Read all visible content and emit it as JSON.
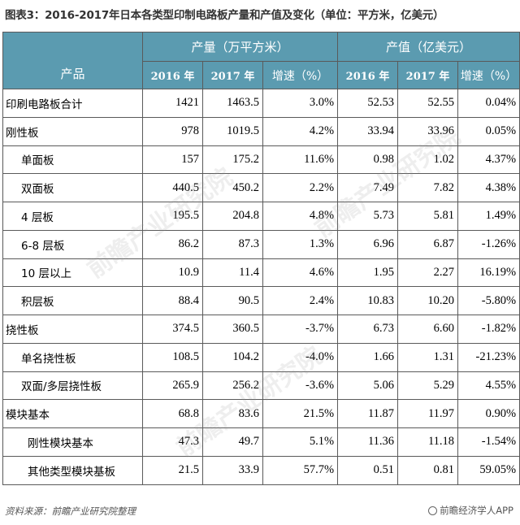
{
  "title": "图表3：2016-2017年日本各类型印制电路板产量和产值及变化（单位：平方米，亿美元）",
  "table": {
    "product_header": "产品",
    "group_headers": [
      "产量（万平方米）",
      "产值（亿美元）"
    ],
    "sub_headers": [
      "2016 年",
      "2017 年",
      "增速（%）",
      "2016 年",
      "2017 年",
      "增速（%）"
    ],
    "rows": [
      {
        "name": "印刷电路板合计",
        "level": 0,
        "values": [
          "1421",
          "1463.5",
          "3.0%",
          "52.53",
          "52.55",
          "0.04%"
        ]
      },
      {
        "name": "刚性板",
        "level": 0,
        "values": [
          "978",
          "1019.5",
          "4.2%",
          "33.94",
          "33.96",
          "0.05%"
        ]
      },
      {
        "name": "单面板",
        "level": 1,
        "values": [
          "157",
          "175.2",
          "11.6%",
          "0.98",
          "1.02",
          "4.37%"
        ]
      },
      {
        "name": "双面板",
        "level": 1,
        "values": [
          "440.5",
          "450.2",
          "2.2%",
          "7.49",
          "7.82",
          "4.38%"
        ]
      },
      {
        "name": "4 层板",
        "level": 1,
        "values": [
          "195.5",
          "204.8",
          "4.8%",
          "5.73",
          "5.81",
          "1.49%"
        ]
      },
      {
        "name": "6-8 层板",
        "level": 1,
        "values": [
          "86.2",
          "87.3",
          "1.3%",
          "6.96",
          "6.87",
          "-1.26%"
        ]
      },
      {
        "name": "10 层以上",
        "level": 1,
        "values": [
          "10.9",
          "11.4",
          "4.6%",
          "1.95",
          "2.27",
          "16.19%"
        ]
      },
      {
        "name": "积层板",
        "level": 1,
        "values": [
          "88.4",
          "90.5",
          "2.4%",
          "10.83",
          "10.20",
          "-5.80%"
        ]
      },
      {
        "name": "挠性板",
        "level": 0,
        "values": [
          "374.5",
          "360.5",
          "-3.7%",
          "6.73",
          "6.60",
          "-1.82%"
        ]
      },
      {
        "name": "单名挠性板",
        "level": 1,
        "values": [
          "108.5",
          "104.2",
          "-4.0%",
          "1.66",
          "1.31",
          "-21.23%"
        ]
      },
      {
        "name": "双面/多层挠性板",
        "level": 1,
        "values": [
          "265.9",
          "256.2",
          "-3.6%",
          "5.06",
          "5.29",
          "4.55%"
        ]
      },
      {
        "name": "模块基本",
        "level": 0,
        "values": [
          "68.8",
          "83.6",
          "21.5%",
          "11.87",
          "11.97",
          "0.90%"
        ]
      },
      {
        "name": "刚性模块基本",
        "level": 2,
        "values": [
          "47.3",
          "49.7",
          "5.1%",
          "11.36",
          "11.18",
          "-1.54%"
        ]
      },
      {
        "name": "其他类型模块基板",
        "level": 2,
        "values": [
          "21.5",
          "33.9",
          "57.7%",
          "0.51",
          "0.81",
          "59.05%"
        ]
      }
    ]
  },
  "footer": {
    "source": "资料来源：前瞻产业研究院整理",
    "brand": "前瞻经济学人APP",
    "brand_icon": "brand-logo-icon"
  },
  "watermark_text": "前瞻产业研究院"
}
